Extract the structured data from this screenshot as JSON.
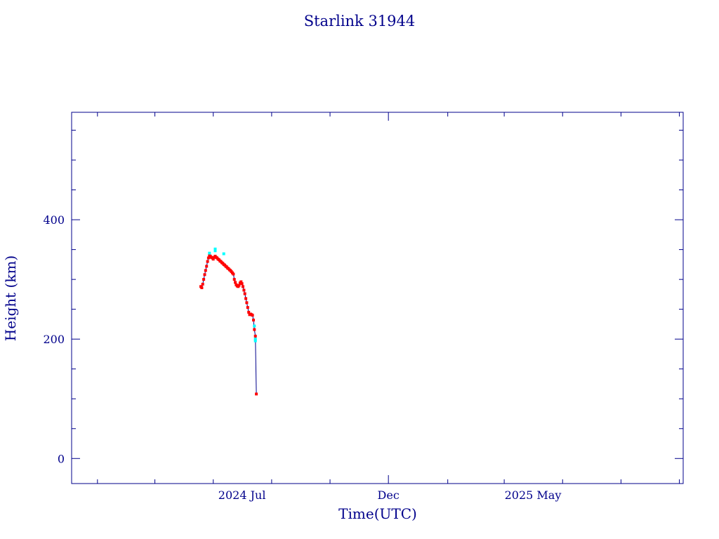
{
  "chart_data": {
    "type": "scatter",
    "title": "Starlink 31944",
    "xlabel": "Time(UTC)",
    "ylabel": "Height (km)",
    "x_axis": {
      "type": "date",
      "range": [
        "2024-01-05",
        "2025-10-05"
      ],
      "tick_labels": [
        {
          "date": "2024-07-01",
          "label": "2024 Jul"
        },
        {
          "date": "2024-12-01",
          "label": "Dec"
        },
        {
          "date": "2025-05-01",
          "label": "2025 May"
        }
      ]
    },
    "y_axis": {
      "range": [
        -42,
        580
      ],
      "ticks": [
        0,
        200,
        400
      ],
      "minor_step": 50
    },
    "grid": false,
    "colors": {
      "axis": "#00008b",
      "line": "#00008b",
      "primary_markers": "#ff0000",
      "secondary_markers": "#00ffff"
    },
    "series": [
      {
        "color": "#ff0000",
        "points": [
          [
            "2024-05-19",
            288
          ],
          [
            "2024-05-20",
            286
          ],
          [
            "2024-05-21",
            292
          ],
          [
            "2024-05-22",
            300
          ],
          [
            "2024-05-23",
            308
          ],
          [
            "2024-05-24",
            315
          ],
          [
            "2024-05-25",
            322
          ],
          [
            "2024-05-26",
            330
          ],
          [
            "2024-05-27",
            336
          ],
          [
            "2024-05-28",
            340
          ],
          [
            "2024-05-29",
            339
          ],
          [
            "2024-05-30",
            337
          ],
          [
            "2024-05-31",
            336
          ],
          [
            "2024-06-01",
            334
          ],
          [
            "2024-06-02",
            337
          ],
          [
            "2024-06-03",
            339
          ],
          [
            "2024-06-04",
            337
          ],
          [
            "2024-06-05",
            336
          ],
          [
            "2024-06-06",
            334
          ],
          [
            "2024-06-07",
            333
          ],
          [
            "2024-06-08",
            331
          ],
          [
            "2024-06-09",
            330
          ],
          [
            "2024-06-10",
            328
          ],
          [
            "2024-06-11",
            327
          ],
          [
            "2024-06-12",
            325
          ],
          [
            "2024-06-13",
            324
          ],
          [
            "2024-06-14",
            322
          ],
          [
            "2024-06-15",
            321
          ],
          [
            "2024-06-16",
            319
          ],
          [
            "2024-06-17",
            318
          ],
          [
            "2024-06-18",
            316
          ],
          [
            "2024-06-19",
            315
          ],
          [
            "2024-06-20",
            313
          ],
          [
            "2024-06-21",
            311
          ],
          [
            "2024-06-22",
            309
          ],
          [
            "2024-06-23",
            300
          ],
          [
            "2024-06-24",
            295
          ],
          [
            "2024-06-25",
            291
          ],
          [
            "2024-06-26",
            289
          ],
          [
            "2024-06-27",
            288
          ],
          [
            "2024-06-28",
            290
          ],
          [
            "2024-06-29",
            294
          ],
          [
            "2024-06-30",
            296
          ],
          [
            "2024-07-01",
            293
          ],
          [
            "2024-07-02",
            288
          ],
          [
            "2024-07-03",
            282
          ],
          [
            "2024-07-04",
            276
          ],
          [
            "2024-07-05",
            268
          ],
          [
            "2024-07-06",
            261
          ],
          [
            "2024-07-07",
            253
          ],
          [
            "2024-07-08",
            245
          ],
          [
            "2024-07-09",
            241
          ],
          [
            "2024-07-10",
            242
          ],
          [
            "2024-07-11",
            241
          ],
          [
            "2024-07-12",
            240
          ],
          [
            "2024-07-13",
            232
          ],
          [
            "2024-07-14",
            216
          ],
          [
            "2024-07-15",
            205
          ],
          [
            "2024-07-16",
            108
          ]
        ]
      },
      {
        "color": "#00ffff",
        "points": [
          [
            "2024-05-28",
            344
          ],
          [
            "2024-06-03",
            348
          ],
          [
            "2024-06-03",
            351
          ],
          [
            "2024-06-12",
            343
          ],
          [
            "2024-07-14",
            222
          ],
          [
            "2024-07-15",
            200
          ],
          [
            "2024-07-15",
            197
          ]
        ]
      }
    ]
  }
}
